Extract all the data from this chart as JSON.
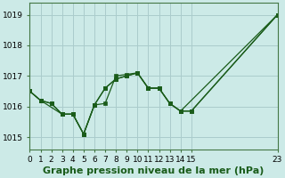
{
  "background_color": "#cceae7",
  "grid_color": "#aacccc",
  "line_color": "#1a5c1a",
  "xlabel": "Graphe pression niveau de la mer (hPa)",
  "ylabel": "",
  "xlim": [
    0,
    23
  ],
  "ylim": [
    1014.6,
    1019.4
  ],
  "yticks": [
    1015,
    1016,
    1017,
    1018,
    1019
  ],
  "xticks": [
    0,
    1,
    2,
    3,
    4,
    5,
    6,
    7,
    8,
    9,
    10,
    11,
    12,
    13,
    14,
    15,
    23
  ],
  "xtick_labels": [
    "0",
    "1",
    "2",
    "3",
    "4",
    "5",
    "6",
    "7",
    "8",
    "9",
    "10",
    "11",
    "12",
    "13",
    "14",
    "15",
    "23"
  ],
  "line1_x": [
    0,
    1,
    3,
    4,
    5,
    6,
    7,
    8,
    9,
    10,
    11,
    12,
    13,
    14,
    15,
    23
  ],
  "line1_y": [
    1016.5,
    1016.2,
    1015.75,
    1015.75,
    1015.1,
    1016.05,
    1016.6,
    1016.9,
    1017.0,
    1017.1,
    1016.6,
    1016.6,
    1016.1,
    1015.85,
    1015.85,
    1019.0
  ],
  "line2_x": [
    0,
    1,
    2,
    3,
    4,
    5,
    6,
    7,
    8,
    9,
    10,
    11,
    12,
    13,
    14,
    15,
    23
  ],
  "line2_y": [
    1016.5,
    1016.2,
    1016.1,
    1015.75,
    1015.75,
    1015.1,
    1016.05,
    1016.1,
    1017.0,
    1017.05,
    1017.1,
    1016.6,
    1016.6,
    1016.1,
    1015.85,
    1015.85,
    1019.0
  ],
  "line3_x": [
    0,
    1,
    2,
    3,
    4,
    5,
    6,
    7,
    8,
    9,
    10,
    11,
    12,
    13,
    14,
    23
  ],
  "line3_y": [
    1016.5,
    1016.2,
    1016.1,
    1015.75,
    1015.75,
    1015.1,
    1016.05,
    1016.6,
    1016.9,
    1017.0,
    1017.1,
    1016.6,
    1016.6,
    1016.1,
    1015.85,
    1019.0
  ],
  "title_fontsize": 8,
  "tick_fontsize": 6.5
}
